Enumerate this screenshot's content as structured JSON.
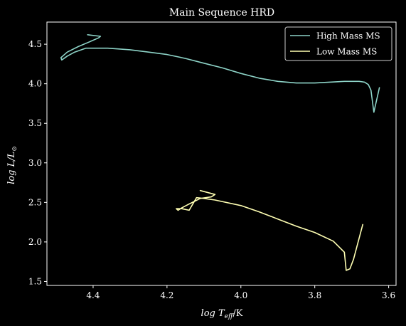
{
  "chart_data": {
    "type": "line",
    "title": "Main Sequence HRD",
    "xlabel": "log T_eff/K",
    "ylabel": "log L/L_⊙",
    "xlim": [
      4.525,
      3.58
    ],
    "ylim": [
      1.45,
      4.78
    ],
    "x_inverted": true,
    "x_ticks": [
      4.4,
      4.2,
      4.0,
      3.8,
      3.6
    ],
    "x_tick_labels": [
      "4.4",
      "4.2",
      "4.0",
      "3.8",
      "3.6"
    ],
    "y_ticks": [
      1.5,
      2.0,
      2.5,
      3.0,
      3.5,
      4.0,
      4.5
    ],
    "y_tick_labels": [
      "1.5",
      "2.0",
      "2.5",
      "3.0",
      "3.5",
      "4.0",
      "4.5"
    ],
    "grid": false,
    "legend_position": "top-right",
    "background": "#000000",
    "series": [
      {
        "name": "High Mass MS",
        "color": "#8dd3c7",
        "x": [
          4.415,
          4.38,
          4.385,
          4.41,
          4.44,
          4.47,
          4.487,
          4.485,
          4.47,
          4.45,
          4.42,
          4.36,
          4.3,
          4.25,
          4.2,
          4.15,
          4.1,
          4.05,
          4.0,
          3.95,
          3.9,
          3.85,
          3.8,
          3.76,
          3.72,
          3.68,
          3.665,
          3.655,
          3.648,
          3.64,
          3.625
        ],
        "y": [
          4.62,
          4.6,
          4.58,
          4.53,
          4.47,
          4.4,
          4.33,
          4.3,
          4.35,
          4.4,
          4.45,
          4.45,
          4.43,
          4.4,
          4.37,
          4.32,
          4.26,
          4.2,
          4.13,
          4.07,
          4.03,
          4.01,
          4.01,
          4.02,
          4.03,
          4.03,
          4.02,
          3.99,
          3.92,
          3.64,
          3.95
        ]
      },
      {
        "name": "Low Mass MS",
        "color": "#ffffb3",
        "x": [
          4.11,
          4.07,
          4.08,
          4.11,
          4.14,
          4.16,
          4.17,
          4.175,
          4.16,
          4.14,
          4.12,
          4.1,
          4.07,
          4.0,
          3.95,
          3.9,
          3.85,
          3.8,
          3.75,
          3.72,
          3.715,
          3.705,
          3.695,
          3.67
        ],
        "y": [
          2.65,
          2.6,
          2.57,
          2.55,
          2.48,
          2.43,
          2.4,
          2.42,
          2.42,
          2.4,
          2.56,
          2.55,
          2.53,
          2.46,
          2.38,
          2.29,
          2.2,
          2.12,
          2.01,
          1.87,
          1.64,
          1.66,
          1.78,
          2.22
        ]
      }
    ]
  }
}
